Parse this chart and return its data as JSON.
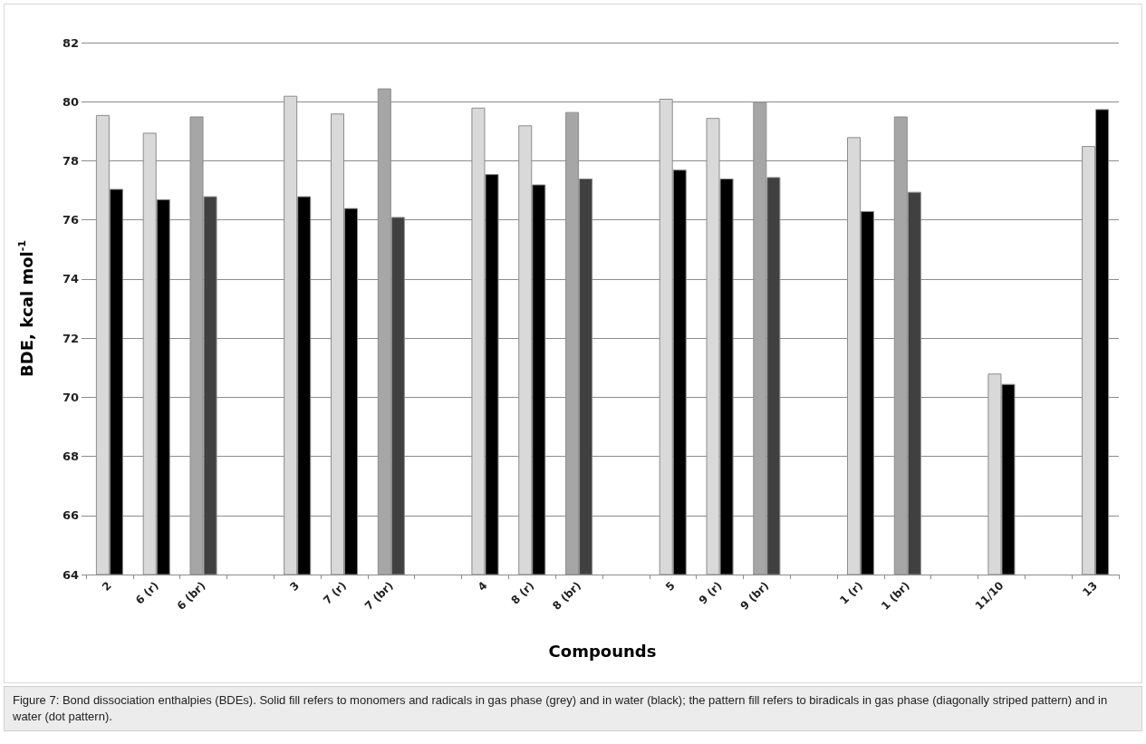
{
  "chart_data": {
    "type": "bar",
    "xlabel": "Compounds",
    "ylabel": "BDE, kcal mol$^{-1}$",
    "annotations": [
      "Figure 7: Bond dissociation enthalpies (BDEs). Solid fill refers to monomers and radicals in gas phase (grey) and in water (black); the pattern fill refers to biradicals in gas phase (diagonally striped pattern) and in water (dot pattern)."
    ],
    "categories": [
      "2",
      "6 (r)",
      "6 (br)",
      null,
      "3",
      "7 (r)",
      "7 (br)",
      null,
      "4",
      "8 (r)",
      "8 (br)",
      null,
      "5",
      "9 (r)",
      "9 (br)",
      null,
      "1 (r)",
      "1 (br)",
      null,
      "11/10",
      null,
      "13"
    ],
    "series": [
      {
        "colors": [
          "#d9d9d9",
          "#d9d9d9",
          "#a6a6a6",
          null,
          "#d9d9d9",
          "#d9d9d9",
          "#a6a6a6",
          null,
          "#d9d9d9",
          "#d9d9d9",
          "#a6a6a6",
          null,
          "#d9d9d9",
          "#d9d9d9",
          "#a6a6a6",
          null,
          "#d9d9d9",
          "#a6a6a6",
          null,
          "#d9d9d9",
          null,
          "#d9d9d9"
        ],
        "values": [
          79.55,
          78.95,
          79.5,
          null,
          80.2,
          79.6,
          80.45,
          null,
          79.8,
          79.2,
          79.65,
          null,
          80.1,
          79.45,
          80.0,
          null,
          78.8,
          79.5,
          null,
          70.8,
          null,
          78.5
        ]
      },
      {
        "colors": [
          "#000000",
          "#000000",
          "#404040",
          null,
          "#000000",
          "#000000",
          "#404040",
          null,
          "#000000",
          "#000000",
          "#404040",
          null,
          "#000000",
          "#000000",
          "#404040",
          null,
          "#000000",
          "#404040",
          null,
          "#000000",
          null,
          "#000000"
        ],
        "values": [
          77.05,
          76.7,
          76.8,
          null,
          76.8,
          76.4,
          76.1,
          null,
          77.55,
          77.2,
          77.4,
          null,
          77.7,
          77.4,
          77.45,
          null,
          76.3,
          76.95,
          null,
          70.45,
          null,
          79.75
        ]
      }
    ],
    "ylim": [
      64,
      82
    ],
    "yticks": [
      64,
      66,
      68,
      70,
      72,
      74,
      76,
      78,
      80,
      82
    ],
    "grid": "y"
  }
}
